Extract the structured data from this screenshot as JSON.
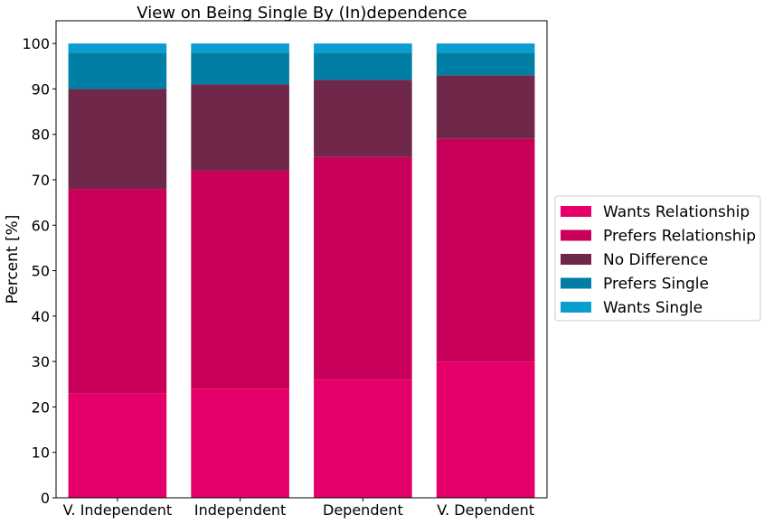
{
  "chart_data": {
    "type": "bar",
    "stacked": true,
    "title": "View on Being Single By (In)dependence",
    "xlabel": "",
    "ylabel": "Percent [%]",
    "ylim": [
      0,
      105
    ],
    "yticks": [
      0,
      10,
      20,
      30,
      40,
      50,
      60,
      70,
      80,
      90,
      100
    ],
    "categories": [
      "V. Independent",
      "Independent",
      "Dependent",
      "V. Dependent"
    ],
    "series": [
      {
        "name": "Wants Relationship",
        "color": "#e50069",
        "values": [
          23,
          24,
          26,
          30
        ]
      },
      {
        "name": "Prefers Relationship",
        "color": "#c90059",
        "values": [
          45,
          48,
          49,
          49
        ]
      },
      {
        "name": "No Difference",
        "color": "#70284a",
        "values": [
          22,
          19,
          17,
          14
        ]
      },
      {
        "name": "Prefers Single",
        "color": "#017ea4",
        "values": [
          8,
          7,
          6,
          5
        ]
      },
      {
        "name": "Wants Single",
        "color": "#0a9ed0",
        "values": [
          2,
          2,
          2,
          2
        ]
      }
    ],
    "grid": false,
    "legend_position": "right"
  }
}
